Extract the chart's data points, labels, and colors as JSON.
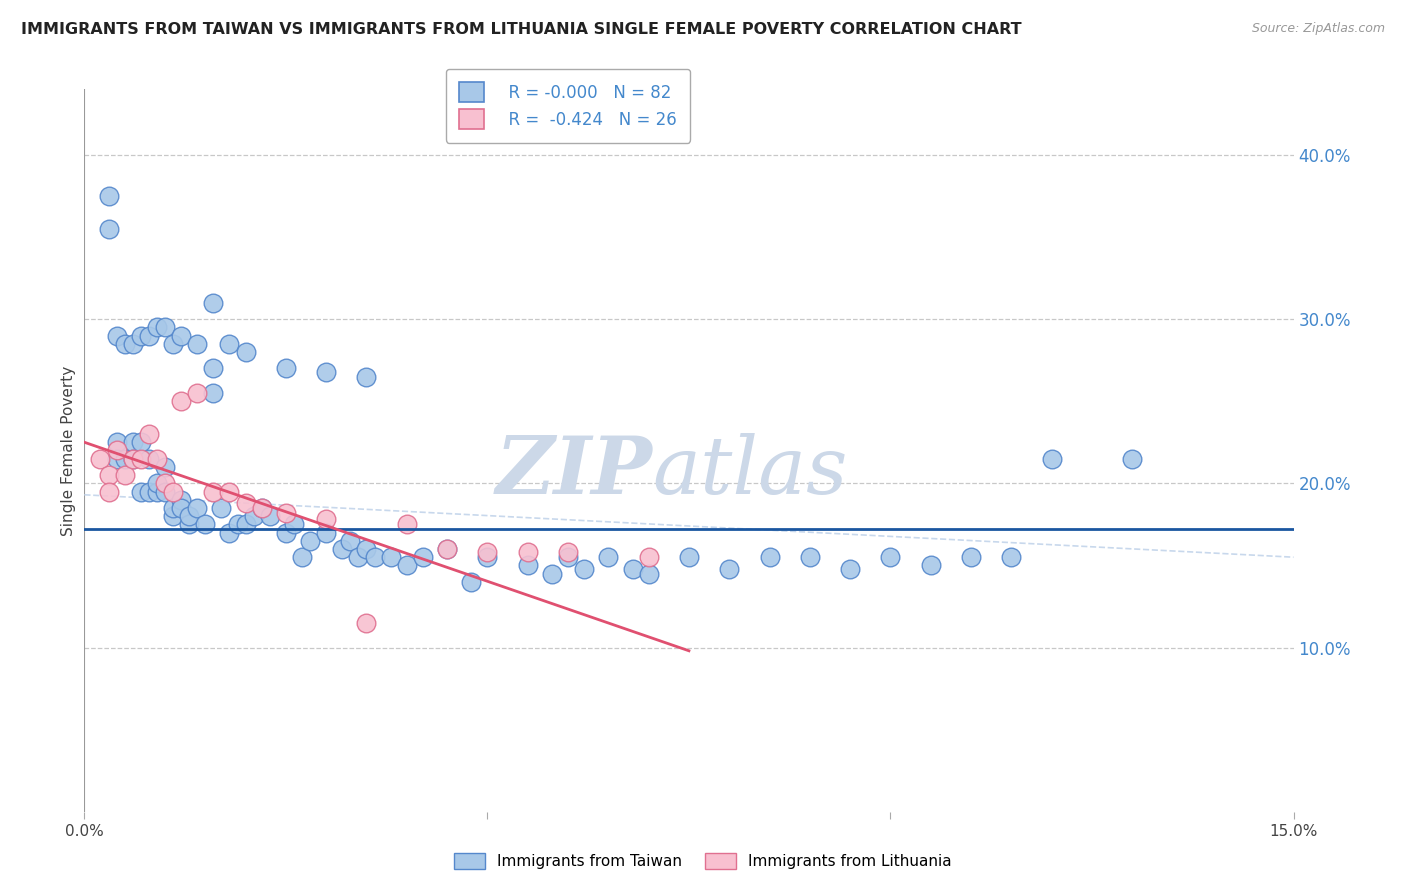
{
  "title": "IMMIGRANTS FROM TAIWAN VS IMMIGRANTS FROM LITHUANIA SINGLE FEMALE POVERTY CORRELATION CHART",
  "source": "Source: ZipAtlas.com",
  "ylabel": "Single Female Poverty",
  "xlim": [
    0.0,
    0.15
  ],
  "ylim": [
    0.0,
    0.44
  ],
  "yticks_right": [
    0.1,
    0.2,
    0.3,
    0.4
  ],
  "ytick_labels_right": [
    "10.0%",
    "20.0%",
    "30.0%",
    "40.0%"
  ],
  "taiwan_color": "#a8c8e8",
  "taiwan_edge": "#5588cc",
  "lithuania_color": "#f8c0d0",
  "lithuania_edge": "#e07090",
  "taiwan_R": "-0.000",
  "taiwan_N": "82",
  "lithuania_R": "-0.424",
  "lithuania_N": "26",
  "taiwan_line_color": "#1a56a0",
  "lithuania_line_color": "#e05070",
  "taiwan_trend_dashed_color": "#c8d8ec",
  "background_color": "#ffffff",
  "grid_color": "#c8c8c8",
  "watermark_zip": "ZIP",
  "watermark_atlas": "atlas",
  "watermark_color": "#ccd8e8",
  "mean_line_y": 0.172,
  "taiwan_trend_x0": 0.0,
  "taiwan_trend_x1": 0.15,
  "taiwan_trend_y0": 0.193,
  "taiwan_trend_y1": 0.155,
  "lithuania_trend_x0": 0.0,
  "lithuania_trend_x1": 0.075,
  "lithuania_trend_y0": 0.225,
  "lithuania_trend_y1": 0.098,
  "taiwan_scatter_x": [
    0.003,
    0.003,
    0.004,
    0.004,
    0.005,
    0.006,
    0.006,
    0.007,
    0.007,
    0.008,
    0.008,
    0.009,
    0.009,
    0.01,
    0.01,
    0.011,
    0.011,
    0.012,
    0.012,
    0.013,
    0.013,
    0.014,
    0.015,
    0.016,
    0.016,
    0.017,
    0.018,
    0.019,
    0.02,
    0.021,
    0.022,
    0.023,
    0.025,
    0.026,
    0.027,
    0.028,
    0.03,
    0.032,
    0.033,
    0.034,
    0.035,
    0.036,
    0.038,
    0.04,
    0.042,
    0.045,
    0.048,
    0.05,
    0.055,
    0.058,
    0.06,
    0.062,
    0.065,
    0.068,
    0.07,
    0.075,
    0.08,
    0.085,
    0.09,
    0.095,
    0.1,
    0.105,
    0.11,
    0.115,
    0.12,
    0.13,
    0.004,
    0.005,
    0.006,
    0.007,
    0.008,
    0.009,
    0.01,
    0.011,
    0.012,
    0.014,
    0.016,
    0.018,
    0.02,
    0.025,
    0.03,
    0.035
  ],
  "taiwan_scatter_y": [
    0.375,
    0.355,
    0.225,
    0.215,
    0.215,
    0.225,
    0.215,
    0.225,
    0.195,
    0.215,
    0.195,
    0.195,
    0.2,
    0.195,
    0.21,
    0.18,
    0.185,
    0.19,
    0.185,
    0.175,
    0.18,
    0.185,
    0.175,
    0.27,
    0.255,
    0.185,
    0.17,
    0.175,
    0.175,
    0.18,
    0.185,
    0.18,
    0.17,
    0.175,
    0.155,
    0.165,
    0.17,
    0.16,
    0.165,
    0.155,
    0.16,
    0.155,
    0.155,
    0.15,
    0.155,
    0.16,
    0.14,
    0.155,
    0.15,
    0.145,
    0.155,
    0.148,
    0.155,
    0.148,
    0.145,
    0.155,
    0.148,
    0.155,
    0.155,
    0.148,
    0.155,
    0.15,
    0.155,
    0.155,
    0.215,
    0.215,
    0.29,
    0.285,
    0.285,
    0.29,
    0.29,
    0.295,
    0.295,
    0.285,
    0.29,
    0.285,
    0.31,
    0.285,
    0.28,
    0.27,
    0.268,
    0.265
  ],
  "lithuania_scatter_x": [
    0.002,
    0.003,
    0.003,
    0.004,
    0.005,
    0.006,
    0.007,
    0.008,
    0.009,
    0.01,
    0.011,
    0.012,
    0.014,
    0.016,
    0.018,
    0.02,
    0.022,
    0.025,
    0.03,
    0.035,
    0.04,
    0.045,
    0.05,
    0.055,
    0.06,
    0.07
  ],
  "lithuania_scatter_y": [
    0.215,
    0.205,
    0.195,
    0.22,
    0.205,
    0.215,
    0.215,
    0.23,
    0.215,
    0.2,
    0.195,
    0.25,
    0.255,
    0.195,
    0.195,
    0.188,
    0.185,
    0.182,
    0.178,
    0.115,
    0.175,
    0.16,
    0.158,
    0.158,
    0.158,
    0.155
  ]
}
